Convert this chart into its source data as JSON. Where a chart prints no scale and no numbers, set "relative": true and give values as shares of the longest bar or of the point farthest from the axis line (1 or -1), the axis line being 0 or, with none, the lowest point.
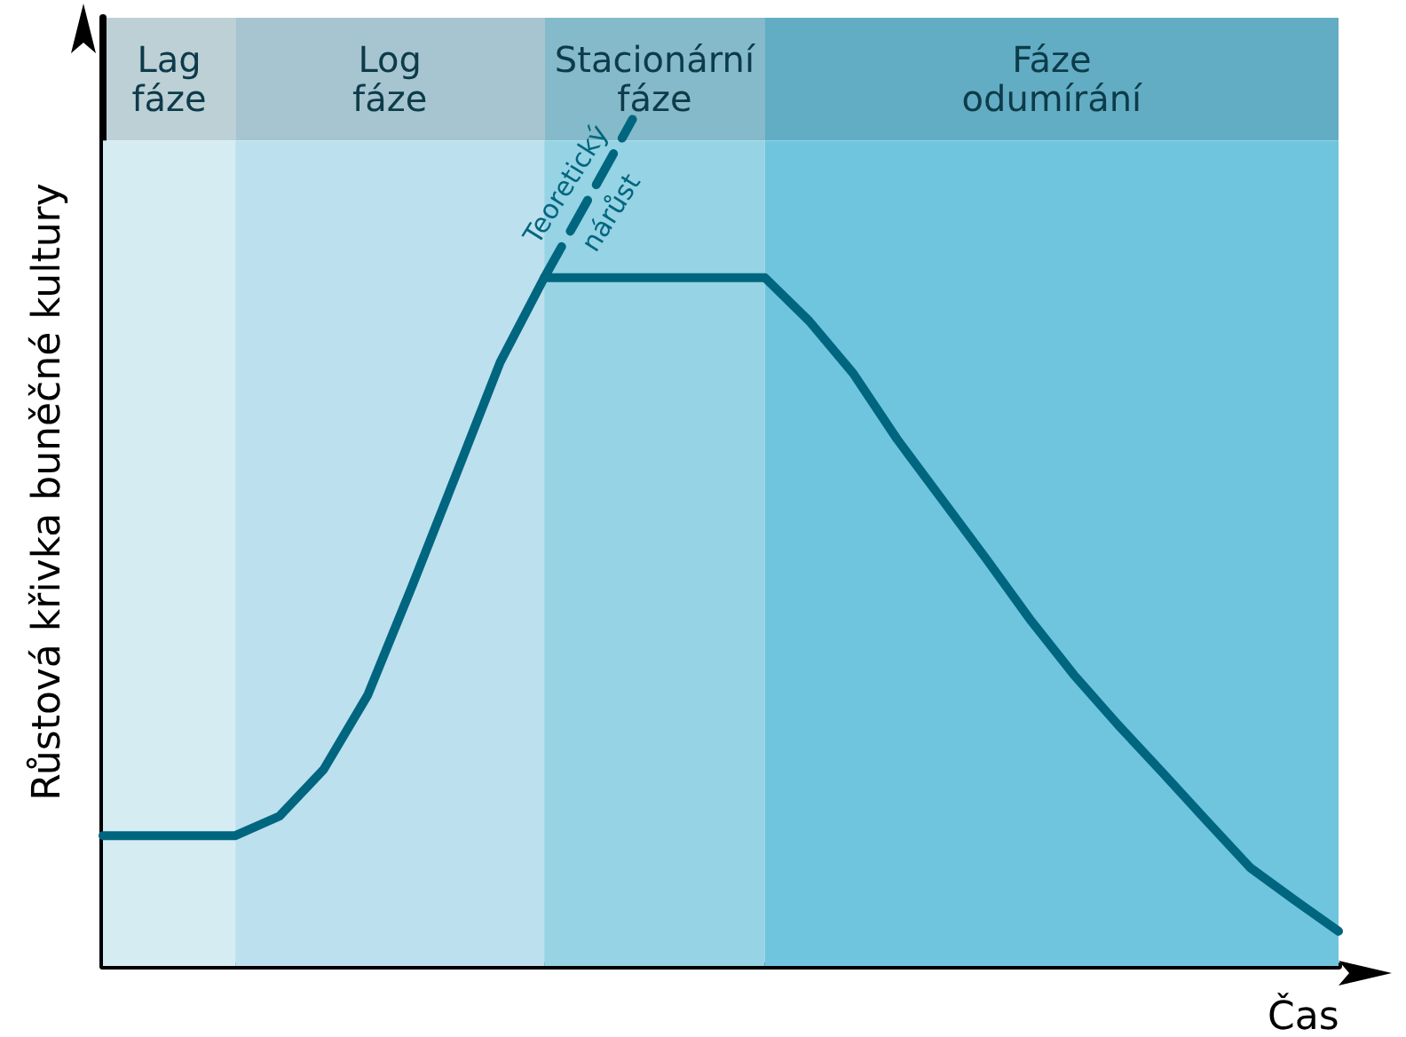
{
  "chart_data": {
    "type": "line",
    "relative": true,
    "xlabel": "Čas",
    "ylabel": "Růstová křivka buněčné kultury",
    "legend": false,
    "grid": false,
    "marker": "none",
    "categories": [
      null,
      null,
      null,
      null,
      null,
      null,
      null,
      null,
      null,
      null,
      null,
      null,
      null,
      null,
      null,
      null,
      null,
      null,
      null,
      null,
      null,
      null,
      null,
      null,
      null,
      null,
      null,
      null,
      null
    ],
    "series": [
      {
        "color": "#00667f",
        "line_style": "solid",
        "values": [
          0.154,
          0.154,
          0.154,
          0.154,
          0.177,
          0.232,
          0.32,
          0.448,
          0.58,
          0.713,
          0.813,
          0.813,
          0.813,
          0.813,
          0.813,
          0.813,
          0.762,
          0.7,
          0.622,
          0.552,
          0.482,
          0.41,
          0.344,
          0.285,
          0.229,
          0.172,
          0.116,
          0.078,
          0.041
        ]
      },
      {
        "name": "Teoretický nárůst",
        "color": "#00667f",
        "line_style": "dashed",
        "values": [
          null,
          null,
          null,
          null,
          null,
          null,
          null,
          null,
          null,
          null,
          0.813,
          0.906,
          1,
          null,
          null,
          null,
          null,
          null,
          null,
          null,
          null,
          null,
          null,
          null,
          null,
          null,
          null,
          null,
          null
        ]
      }
    ],
    "annotations": [
      "Lag fáze",
      "Log fáze",
      "Stacionární fáze",
      "Fáze odumírání"
    ]
  }
}
